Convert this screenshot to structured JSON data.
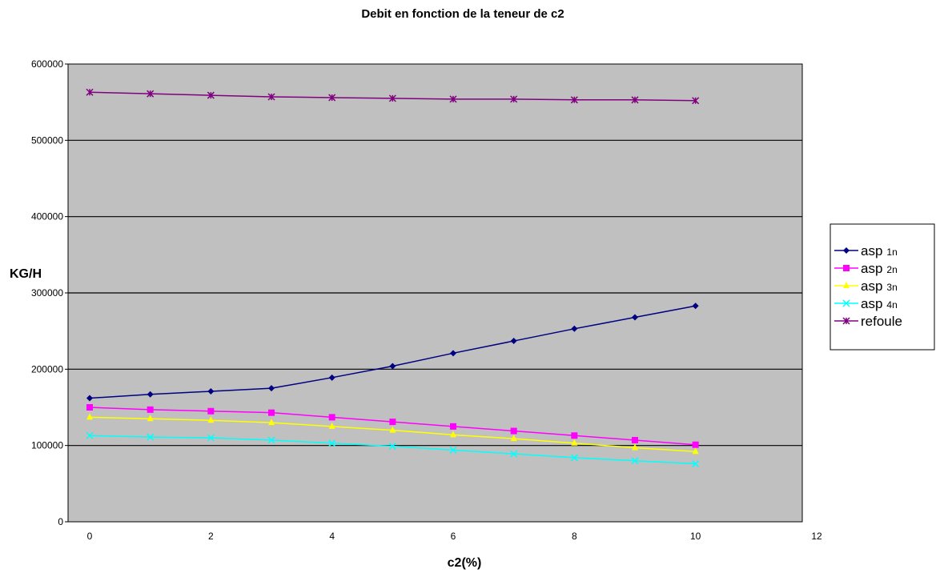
{
  "chart_data": {
    "type": "line",
    "title": "Debit en fonction de la teneur de c2",
    "xlabel": "c2(%)",
    "ylabel": "KG/H",
    "xlim": [
      0,
      12
    ],
    "ylim": [
      0,
      600000
    ],
    "xticks": [
      "0",
      "2",
      "4",
      "6",
      "8",
      "10",
      "12"
    ],
    "yticks": [
      "0",
      "100000",
      "200000",
      "300000",
      "400000",
      "500000",
      "600000"
    ],
    "grid": "horizontal",
    "legend_position": "right",
    "plot_background": "#c0c0c0",
    "x": [
      0,
      1,
      2,
      3,
      4,
      5,
      6,
      7,
      8,
      9,
      10
    ],
    "series": [
      {
        "name": "asp",
        "name_sub": "1n",
        "color": "#000080",
        "marker": "diamond",
        "values": [
          162000,
          167000,
          171000,
          175000,
          189000,
          204000,
          221000,
          237000,
          253000,
          268000,
          283000
        ]
      },
      {
        "name": "asp",
        "name_sub": "2n",
        "color": "#ff00ff",
        "marker": "square",
        "values": [
          150000,
          147000,
          145000,
          143000,
          137000,
          131000,
          125000,
          119000,
          113000,
          107000,
          101000
        ]
      },
      {
        "name": "asp",
        "name_sub": "3n",
        "color": "#ffff00",
        "marker": "triangle",
        "values": [
          137000,
          135000,
          133000,
          130000,
          125000,
          120000,
          114000,
          109000,
          103000,
          97000,
          92000
        ]
      },
      {
        "name": "asp",
        "name_sub": "4n",
        "color": "#00ffff",
        "marker": "x",
        "values": [
          113000,
          111000,
          110000,
          107000,
          103000,
          99000,
          94000,
          89000,
          84000,
          80000,
          76000
        ]
      },
      {
        "name": "refoule",
        "name_sub": "",
        "color": "#800080",
        "marker": "star",
        "values": [
          563000,
          561000,
          559000,
          557000,
          556000,
          555000,
          554000,
          554000,
          553000,
          553000,
          552000
        ]
      }
    ]
  }
}
